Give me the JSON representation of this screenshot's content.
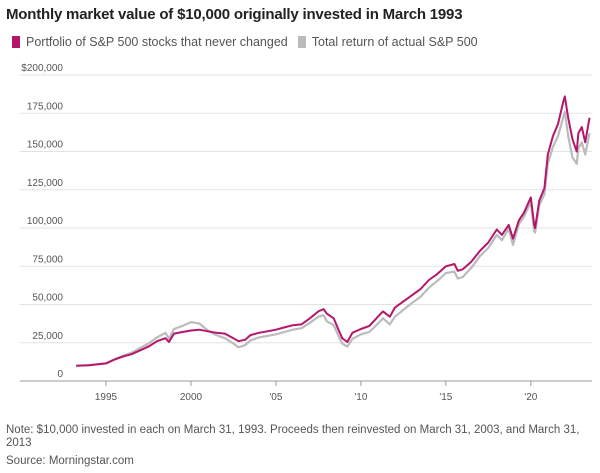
{
  "chart_data": {
    "type": "line",
    "title": "Monthly market value of $10,000 originally invested in March 1993",
    "xlabel": "",
    "ylabel": "",
    "xlim": [
      1993.0,
      2023.6
    ],
    "ylim": [
      0,
      200000
    ],
    "grid": true,
    "legend_position": "top-left",
    "y_ticks": [
      0,
      25000,
      50000,
      75000,
      100000,
      125000,
      150000,
      175000,
      200000
    ],
    "y_tick_labels": [
      "0",
      "25,000",
      "50,000",
      "75,000",
      "100,000",
      "125,000",
      "150,000",
      "175,000",
      "$200,000"
    ],
    "x_ticks": [
      1995,
      2000,
      2005,
      2010,
      2015,
      2020
    ],
    "x_tick_labels": [
      "1995",
      "2000",
      "'05",
      "'10",
      "'15",
      "'20"
    ],
    "series": [
      {
        "name": "Portfolio of S&P 500 stocks that never changed",
        "color": "#b5166b",
        "x": [
          1993.25,
          1994.0,
          1995.0,
          1995.5,
          1996.0,
          1996.5,
          1997.0,
          1997.5,
          1998.0,
          1998.5,
          1998.7,
          1999.0,
          1999.5,
          2000.0,
          2000.5,
          2001.0,
          2001.5,
          2002.0,
          2002.5,
          2002.8,
          2003.2,
          2003.5,
          2004.0,
          2004.5,
          2005.0,
          2005.5,
          2006.0,
          2006.5,
          2007.0,
          2007.5,
          2007.8,
          2008.0,
          2008.4,
          2008.7,
          2008.9,
          2009.2,
          2009.5,
          2010.0,
          2010.5,
          2011.0,
          2011.3,
          2011.7,
          2012.0,
          2012.5,
          2013.0,
          2013.5,
          2014.0,
          2014.5,
          2015.0,
          2015.5,
          2015.7,
          2016.0,
          2016.5,
          2017.0,
          2017.5,
          2018.0,
          2018.3,
          2018.7,
          2018.95,
          2019.3,
          2019.6,
          2020.0,
          2020.2,
          2020.25,
          2020.5,
          2020.8,
          2021.0,
          2021.3,
          2021.6,
          2021.9,
          2022.0,
          2022.2,
          2022.45,
          2022.7,
          2022.8,
          2023.0,
          2023.2,
          2023.45
        ],
        "values": [
          10000,
          10300,
          11500,
          14000,
          16000,
          17500,
          20000,
          22500,
          26000,
          28000,
          25500,
          31000,
          32000,
          33000,
          33500,
          32500,
          31500,
          31000,
          28000,
          26000,
          27000,
          30000,
          31500,
          32500,
          33500,
          35000,
          36500,
          37000,
          41000,
          45500,
          47000,
          44000,
          41000,
          33000,
          28000,
          25500,
          31500,
          34000,
          36000,
          42000,
          45500,
          42000,
          48000,
          52000,
          56000,
          60000,
          66000,
          70000,
          75000,
          76500,
          72000,
          73000,
          78000,
          85000,
          90500,
          99000,
          95500,
          102000,
          93000,
          105000,
          110000,
          120000,
          102000,
          100000,
          118000,
          126000,
          148000,
          160000,
          168000,
          182000,
          186000,
          172000,
          158000,
          150000,
          162000,
          166000,
          156000,
          172000
        ]
      },
      {
        "name": "Total return of actual S&P 500",
        "color": "#bbbbbb",
        "x": [
          1993.25,
          1994.0,
          1995.0,
          1995.5,
          1996.0,
          1996.5,
          1997.0,
          1997.5,
          1998.0,
          1998.5,
          1998.7,
          1999.0,
          1999.5,
          2000.0,
          2000.5,
          2001.0,
          2001.5,
          2002.0,
          2002.5,
          2002.8,
          2003.2,
          2003.5,
          2004.0,
          2004.5,
          2005.0,
          2005.5,
          2006.0,
          2006.5,
          2007.0,
          2007.5,
          2007.8,
          2008.0,
          2008.4,
          2008.7,
          2008.9,
          2009.2,
          2009.5,
          2010.0,
          2010.5,
          2011.0,
          2011.3,
          2011.7,
          2012.0,
          2012.5,
          2013.0,
          2013.5,
          2014.0,
          2014.5,
          2015.0,
          2015.5,
          2015.7,
          2016.0,
          2016.5,
          2017.0,
          2017.5,
          2018.0,
          2018.3,
          2018.7,
          2018.95,
          2019.3,
          2019.6,
          2020.0,
          2020.2,
          2020.25,
          2020.5,
          2020.8,
          2021.0,
          2021.3,
          2021.6,
          2021.9,
          2022.0,
          2022.2,
          2022.45,
          2022.7,
          2022.8,
          2023.0,
          2023.2,
          2023.45
        ],
        "values": [
          10000,
          10300,
          11500,
          14200,
          16500,
          18500,
          21500,
          24500,
          28500,
          31500,
          27500,
          34000,
          36000,
          38500,
          37500,
          33000,
          30000,
          28000,
          24500,
          22000,
          23500,
          26500,
          28500,
          29500,
          30500,
          32000,
          33500,
          34500,
          38000,
          42000,
          43000,
          39000,
          36500,
          29000,
          24500,
          22500,
          27500,
          30500,
          32000,
          37500,
          41000,
          37000,
          42000,
          46500,
          51000,
          55000,
          61000,
          65500,
          70500,
          71500,
          67000,
          68000,
          74000,
          81500,
          87000,
          95500,
          92000,
          99500,
          89000,
          102500,
          107500,
          117000,
          98000,
          97000,
          115000,
          122000,
          142000,
          153000,
          160000,
          172000,
          176000,
          160000,
          146000,
          142000,
          152000,
          156000,
          148000,
          162000
        ]
      }
    ]
  },
  "note": "Note: $10,000 invested in each on March 31, 1993. Proceeds then reinvested on March 31, 2003, and March 31, 2013",
  "source": "Source: Morningstar.com"
}
